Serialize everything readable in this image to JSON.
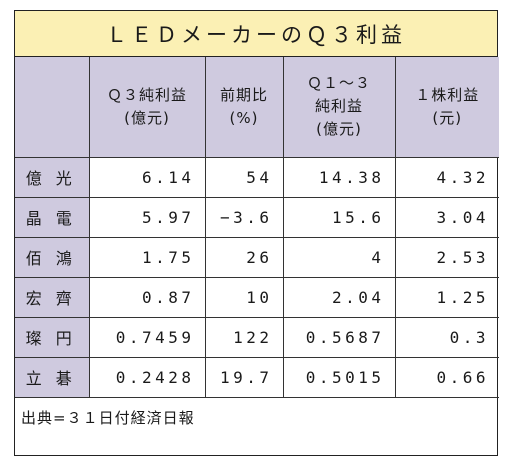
{
  "title": "ＬＥＤメーカーのＱ３利益",
  "columns": [
    {
      "line1": "",
      "line2": "",
      "line3": ""
    },
    {
      "line1": "Ｑ３純利益",
      "line2": "(億元)",
      "line3": ""
    },
    {
      "line1": "前期比",
      "line2": "(%)",
      "line3": ""
    },
    {
      "line1": "Ｑ１〜３",
      "line2": "純利益",
      "line3": "(億元)"
    },
    {
      "line1": "１株利益",
      "line2": "(元)",
      "line3": ""
    }
  ],
  "rows": [
    {
      "company": "億光",
      "q3_net_profit": "6.14",
      "yoy": "54",
      "q1_3_net_profit": "14.38",
      "eps": "4.32"
    },
    {
      "company": "晶電",
      "q3_net_profit": "5.97",
      "yoy": "−3.6",
      "q1_3_net_profit": "15.6",
      "eps": "3.04"
    },
    {
      "company": "佰鴻",
      "q3_net_profit": "1.75",
      "yoy": "26",
      "q1_3_net_profit": "4",
      "eps": "2.53"
    },
    {
      "company": "宏齊",
      "q3_net_profit": "0.87",
      "yoy": "10",
      "q1_3_net_profit": "2.04",
      "eps": "1.25"
    },
    {
      "company": "璨円",
      "q3_net_profit": "0.7459",
      "yoy": "122",
      "q1_3_net_profit": "0.5687",
      "eps": "0.3"
    },
    {
      "company": "立碁",
      "q3_net_profit": "0.2428",
      "yoy": "19.7",
      "q1_3_net_profit": "0.5015",
      "eps": "0.66"
    }
  ],
  "source": "出典=３１日付経済日報",
  "colors": {
    "title_bg": "#fbf0b4",
    "header_bg": "#cfcadf",
    "border": "#222222"
  }
}
